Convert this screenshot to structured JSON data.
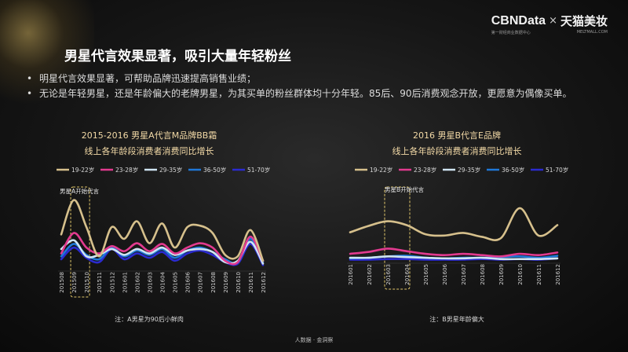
{
  "brand": {
    "cbn": "CBNData",
    "cbn_sub": "第一财经商业数据中心",
    "x": "×",
    "tmall": "天猫美妆",
    "tmall_sub": "MELTMALL.COM"
  },
  "title": "男星代言效果显著，吸引大量年轻粉丝",
  "bullets": [
    "明星代言效果显著，可帮助品牌迅速提高销售业绩；",
    "无论是年轻男星，还是年龄偏大的老牌男星，为其买单的粉丝群体均十分年轻。85后、90后消费观念开放，更愿意为偶像买单。"
  ],
  "footer": "人数据 · 金洞察",
  "colors": {
    "19-22岁": "#d6c08c",
    "23-28岁": "#e23a8f",
    "29-35岁": "#cfe4f2",
    "36-50岁": "#1f78d8",
    "51-70岁": "#2b2bd0"
  },
  "chart_data": [
    {
      "type": "line",
      "title": "2015-2016 男星A代言M品牌BB霜",
      "subtitle": "线上各年龄段消费者消费同比增长",
      "x": [
        "201508",
        "201509",
        "201510",
        "201511",
        "201512",
        "201601",
        "201602",
        "201603",
        "201604",
        "201605",
        "201606",
        "201607",
        "201608",
        "201609",
        "201610",
        "201611",
        "201612"
      ],
      "annotation": "男星A开始代言",
      "highlight_range": [
        "201509",
        "201510"
      ],
      "note": "注：A男星为90后小鲜肉",
      "grid": false,
      "ylim": [
        0,
        100
      ],
      "series": [
        {
          "name": "19-22岁",
          "values": [
            48,
            95,
            58,
            18,
            58,
            42,
            66,
            36,
            63,
            30,
            58,
            60,
            50,
            20,
            18,
            54,
            12
          ]
        },
        {
          "name": "23-28岁",
          "values": [
            22,
            50,
            30,
            22,
            32,
            25,
            36,
            25,
            35,
            22,
            30,
            36,
            30,
            12,
            10,
            45,
            12
          ]
        },
        {
          "name": "29-35岁",
          "values": [
            28,
            40,
            18,
            20,
            28,
            20,
            28,
            22,
            30,
            20,
            26,
            28,
            24,
            10,
            12,
            38,
            8
          ]
        },
        {
          "name": "36-50岁",
          "values": [
            18,
            35,
            20,
            14,
            30,
            18,
            26,
            20,
            28,
            16,
            26,
            30,
            24,
            14,
            10,
            42,
            10
          ]
        },
        {
          "name": "51-70岁",
          "values": [
            14,
            30,
            16,
            10,
            28,
            14,
            22,
            16,
            24,
            12,
            22,
            26,
            20,
            10,
            8,
            35,
            6
          ]
        }
      ]
    },
    {
      "type": "line",
      "title": "2016 男星B代言E品牌",
      "subtitle": "线上各年龄段消费者消费同比增长",
      "x": [
        "201601",
        "201602",
        "201603",
        "201604",
        "201605",
        "201606",
        "201607",
        "201608",
        "201609",
        "201610",
        "201611",
        "201612"
      ],
      "annotation": "男星B开始代言",
      "highlight_range": [
        "201603",
        "201604"
      ],
      "note": "注：B男星年龄偏大",
      "grid": false,
      "ylim": [
        0,
        100
      ],
      "series": [
        {
          "name": "19-22岁",
          "values": [
            45,
            55,
            62,
            56,
            42,
            40,
            44,
            38,
            36,
            82,
            40,
            56
          ]
        },
        {
          "name": "23-28岁",
          "values": [
            12,
            15,
            20,
            16,
            12,
            10,
            12,
            10,
            8,
            12,
            10,
            14
          ]
        },
        {
          "name": "29-35岁",
          "values": [
            6,
            6,
            8,
            7,
            6,
            5,
            5,
            6,
            4,
            4,
            4,
            5
          ]
        },
        {
          "name": "36-50岁",
          "values": [
            5,
            6,
            8,
            9,
            6,
            5,
            6,
            6,
            7,
            8,
            6,
            9
          ]
        },
        {
          "name": "51-70岁",
          "values": [
            3,
            3,
            4,
            4,
            3,
            3,
            3,
            4,
            3,
            4,
            3,
            5
          ]
        }
      ]
    }
  ]
}
